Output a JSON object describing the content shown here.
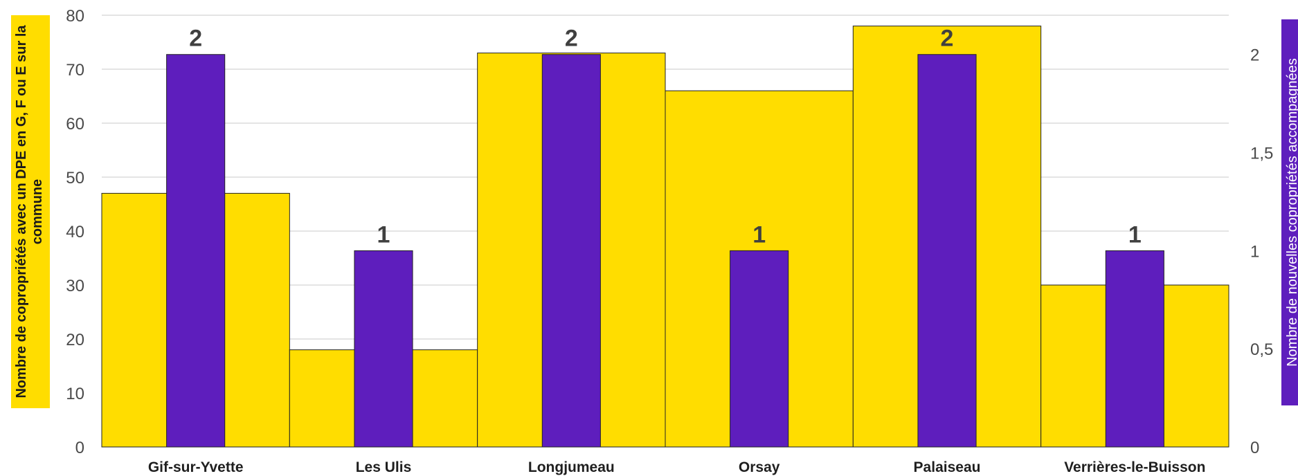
{
  "chart_data": {
    "type": "bar",
    "categories": [
      "Gif-sur-Yvette",
      "Les Ulis",
      "Longjumeau",
      "Orsay",
      "Palaiseau",
      "Verrières-le-Buisson"
    ],
    "series": [
      {
        "axis": "left",
        "color": "#FFDD00",
        "values": [
          47,
          18,
          73,
          66,
          78,
          30
        ]
      },
      {
        "axis": "right",
        "color": "#5E1EBD",
        "values": [
          2,
          1,
          2,
          1,
          2,
          1
        ],
        "data_labels": [
          "2",
          "1",
          "2",
          "1",
          "2",
          "1"
        ]
      }
    ],
    "y_left": {
      "label": "Nombre de copropriétés avec un DPE en G, F ou E sur la commune",
      "label_line1": "Nombre de copropriétés avec un DPE en G, F ou E sur la",
      "label_line2": "commune",
      "min": 0,
      "max": 80,
      "ticks": [
        "0",
        "10",
        "20",
        "30",
        "40",
        "50",
        "60",
        "70",
        "80"
      ],
      "label_bg": "#FFDD00"
    },
    "y_right": {
      "label": "Nombre de nouvelles copropriétés accompagnées",
      "min": 0,
      "max": 2.2,
      "ticks": [
        "0",
        "0,5",
        "1",
        "1,5",
        "2"
      ],
      "tick_values": [
        0,
        0.5,
        1,
        1.5,
        2
      ],
      "label_bg": "#5E1EBD"
    },
    "grid": true,
    "legend": "none"
  }
}
